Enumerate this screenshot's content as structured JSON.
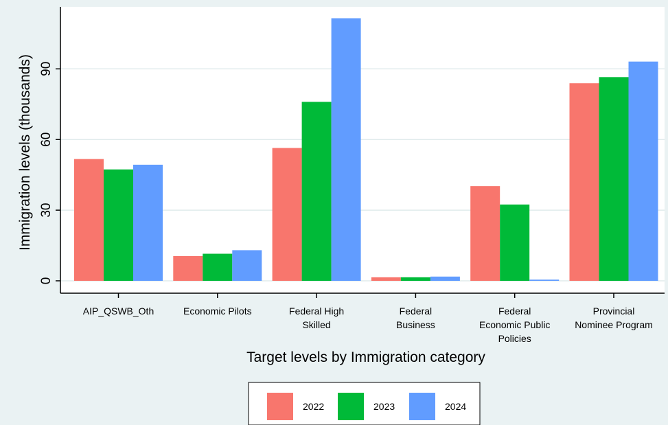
{
  "chart_data": {
    "type": "bar",
    "categories": [
      [
        "AIP_QSWB_Oth"
      ],
      [
        "Economic Pilots"
      ],
      [
        "Federal High",
        "Skilled"
      ],
      [
        "Federal",
        "Business"
      ],
      [
        "Federal",
        "Economic Public",
        "Policies"
      ],
      [
        "Provincial",
        "Nominee Program"
      ]
    ],
    "series": [
      {
        "name": "2022",
        "color": "#f8766d",
        "values": [
          51.7,
          10.5,
          56.4,
          1.5,
          40.2,
          83.9
        ]
      },
      {
        "name": "2023",
        "color": "#00ba38",
        "values": [
          47.3,
          11.5,
          76.0,
          1.5,
          32.4,
          86.5
        ]
      },
      {
        "name": "2024",
        "color": "#619cff",
        "values": [
          49.3,
          13.0,
          111.5,
          1.8,
          0.5,
          93.1
        ]
      }
    ],
    "xlabel": "Target levels by Immigration category",
    "ylabel": "Immigration levels (thousands)",
    "yticks": [
      0,
      30,
      60,
      90
    ],
    "ylim": [
      0,
      114
    ],
    "grid": true,
    "legend_position": "bottom"
  }
}
